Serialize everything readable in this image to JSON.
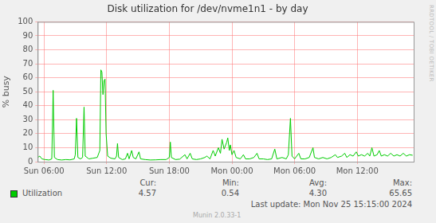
{
  "chart_data": {
    "type": "line",
    "title": "Disk utilization for /dev/nvme1n1 - by day",
    "y_label": "% busy",
    "x": [
      5.4,
      5.6,
      5.8,
      6.1,
      6.5,
      6.75,
      6.88,
      7.0,
      7.3,
      7.7,
      8.1,
      8.5,
      8.9,
      9.0,
      9.12,
      9.25,
      9.5,
      9.7,
      9.84,
      9.95,
      10.3,
      10.7,
      11.1,
      11.35,
      11.45,
      11.55,
      11.65,
      11.75,
      11.85,
      11.95,
      12.1,
      12.4,
      12.8,
      12.95,
      13.04,
      13.15,
      13.5,
      13.8,
      14.0,
      14.15,
      14.4,
      14.55,
      14.8,
      15.1,
      15.25,
      15.7,
      16.2,
      16.7,
      17.2,
      17.7,
      18.0,
      18.1,
      18.2,
      18.6,
      19.0,
      19.5,
      19.7,
      20.0,
      20.2,
      20.6,
      21.0,
      21.4,
      21.6,
      21.9,
      22.2,
      22.4,
      22.7,
      22.9,
      23.05,
      23.25,
      23.5,
      23.6,
      23.75,
      23.85,
      24.0,
      24.2,
      24.4,
      24.8,
      25.1,
      25.3,
      25.7,
      26.1,
      26.4,
      26.6,
      27.0,
      27.4,
      27.8,
      28.1,
      28.3,
      28.8,
      29.2,
      29.4,
      29.6,
      29.75,
      30.0,
      30.4,
      30.6,
      31.0,
      31.4,
      31.76,
      31.9,
      32.3,
      32.7,
      33.1,
      33.5,
      33.9,
      34.1,
      34.5,
      34.8,
      35.0,
      35.3,
      35.6,
      35.9,
      36.1,
      36.4,
      36.7,
      37.0,
      37.2,
      37.4,
      37.6,
      37.9,
      38.1,
      38.3,
      38.6,
      38.9,
      39.2,
      39.5,
      39.8,
      40.1,
      40.4,
      40.7,
      41.0,
      41.3
    ],
    "series": [
      {
        "name": "Utilization",
        "color": "#00cc00",
        "values": [
          3,
          4,
          2,
          1.5,
          1.2,
          2,
          51,
          3,
          1.5,
          1.2,
          1.5,
          1.3,
          2,
          5,
          31,
          3,
          2,
          3,
          39,
          4,
          2,
          2.5,
          3,
          8,
          65.65,
          64,
          48,
          58,
          59,
          20,
          4,
          2.5,
          2,
          4,
          13,
          3,
          1.5,
          2,
          6,
          2,
          8,
          3,
          2,
          7,
          2,
          1.5,
          1.2,
          1.3,
          1.5,
          1.5,
          3,
          14,
          3,
          1.5,
          1.8,
          5,
          2,
          6,
          2,
          1.5,
          2,
          3,
          4,
          2,
          8,
          4,
          10,
          6,
          16,
          9,
          14,
          17,
          8,
          12,
          5,
          8,
          3,
          2,
          5,
          2,
          2,
          3,
          6,
          2,
          2,
          1.5,
          2,
          9,
          2,
          3,
          2,
          5,
          31,
          4,
          2,
          6,
          2,
          2,
          3,
          10,
          3,
          2,
          3,
          2,
          3,
          5,
          3,
          4,
          6,
          3,
          5,
          4,
          7,
          4,
          5,
          4,
          6,
          4,
          10,
          4,
          5,
          8,
          4,
          5,
          4,
          6,
          4,
          5,
          4,
          6,
          4,
          5,
          4.57
        ]
      }
    ],
    "xlim": [
      5.4,
      41.4
    ],
    "xticks": [
      {
        "value": 6,
        "label": "Sun 06:00"
      },
      {
        "value": 12,
        "label": "Sun 12:00"
      },
      {
        "value": 18,
        "label": "Sun 18:00"
      },
      {
        "value": 24,
        "label": "Mon 00:00"
      },
      {
        "value": 30,
        "label": "Mon 06:00"
      },
      {
        "value": 36,
        "label": "Mon 12:00"
      }
    ],
    "ylim": [
      0,
      100
    ],
    "yticks": [
      0,
      10,
      20,
      30,
      40,
      50,
      60,
      70,
      80,
      90,
      100
    ],
    "grid": true,
    "legend": "bottom",
    "stats": {
      "names": [
        "Cur:",
        "Min:",
        "Avg:",
        "Max:"
      ],
      "values": [
        4.57,
        0.54,
        4.3,
        65.65
      ]
    },
    "last_update": "Last update: Mon Nov 25 15:15:00 2024",
    "footer": "Munin 2.0.33-1",
    "watermark": "RRDTOOL / TOBI OETIKER"
  }
}
